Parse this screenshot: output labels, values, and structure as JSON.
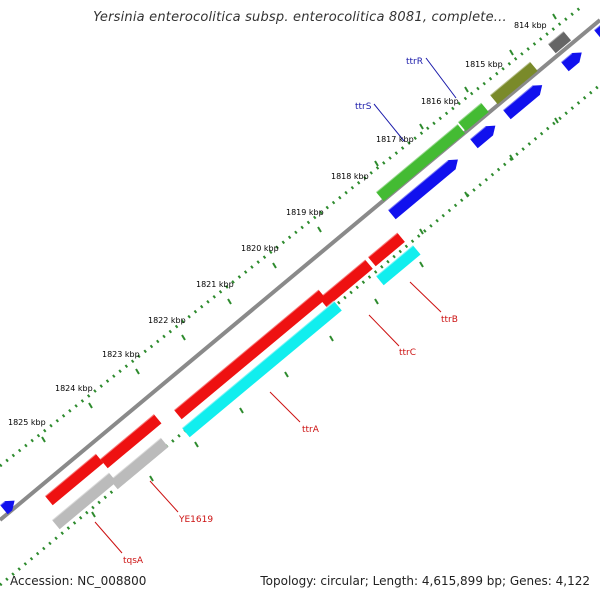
{
  "title": "Yersinia enterocolitica subsp. enterocolitica 8081, complete...",
  "footer": {
    "accession": "Accession: NC_008800",
    "summary": "Topology: circular; Length: 4,615,899 bp; Genes: 4,122"
  },
  "colors": {
    "background": "#ffffff",
    "backbone": "#8a8a8a",
    "tick_dots": "#2e8b2e",
    "label_blue": "#1a1aaa",
    "label_red": "#cc1111",
    "feature_red": "#ee1111",
    "feature_cyan": "#11eeee",
    "feature_blue": "#1111ee",
    "feature_green": "#44bb33",
    "feature_olive": "#7a8a2a",
    "feature_gray": "#bbbbbb",
    "feature_darkgray": "#666666"
  },
  "ruler": {
    "labels": [
      "814 kbp",
      "1815 kbp",
      "1816 kbp",
      "1817 kbp",
      "1818 kbp",
      "1819 kbp",
      "1820 kbp",
      "1821 kbp",
      "1822 kbp",
      "1823 kbp",
      "1824 kbp",
      "1825 kbp"
    ]
  },
  "genes": [
    {
      "name": "ttrR",
      "strand": "forward",
      "color": "feature_olive",
      "label_color": "label_blue"
    },
    {
      "name": "ttrS",
      "strand": "forward",
      "color": "feature_green",
      "label_color": "label_blue"
    },
    {
      "name": "ttrB",
      "strand": "reverse",
      "color": "feature_red",
      "label_color": "label_red"
    },
    {
      "name": "ttrC",
      "strand": "reverse",
      "color": "feature_red",
      "label_color": "label_red"
    },
    {
      "name": "ttrA",
      "strand": "reverse",
      "color": "feature_red",
      "label_color": "label_red"
    },
    {
      "name": "YE1619",
      "strand": "reverse",
      "color": "feature_red",
      "label_color": "label_red"
    },
    {
      "name": "tqsA",
      "strand": "reverse",
      "color": "feature_red",
      "label_color": "label_red"
    }
  ]
}
